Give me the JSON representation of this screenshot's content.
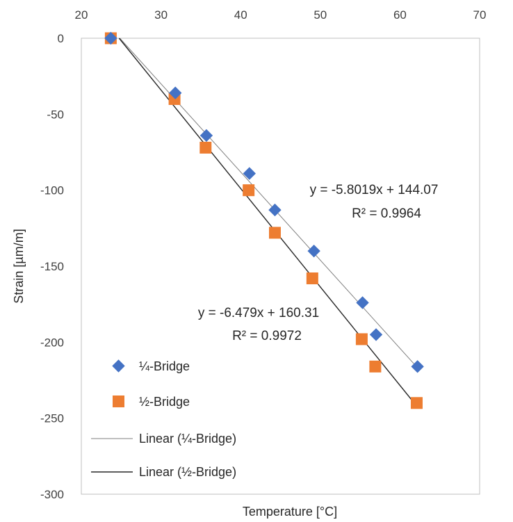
{
  "chart_data": {
    "type": "scatter",
    "title": "",
    "xlabel": "Temperature [°C]",
    "ylabel": "Strain [µm/m]",
    "xlim": [
      20,
      70
    ],
    "ylim": [
      -300,
      0
    ],
    "x_ticks": [
      20,
      30,
      40,
      50,
      60,
      70
    ],
    "y_ticks": [
      0,
      -50,
      -100,
      -150,
      -200,
      -250,
      -300
    ],
    "x_axis_position": "top",
    "grid": false,
    "legend_position": "bottom-left",
    "series": [
      {
        "name": "¼-Bridge",
        "marker": "diamond",
        "color": "#4472C4",
        "x": [
          23.7,
          31.8,
          35.7,
          41.1,
          44.3,
          49.2,
          55.3,
          57.0,
          62.2
        ],
        "y": [
          0,
          -36,
          -64,
          -89,
          -113,
          -140,
          -174,
          -195,
          -216
        ]
      },
      {
        "name": "½-Bridge",
        "marker": "square",
        "color": "#ED7D31",
        "x": [
          23.7,
          31.7,
          35.6,
          41.0,
          44.3,
          49.0,
          55.2,
          56.9,
          62.1
        ],
        "y": [
          0,
          -40,
          -72,
          -100,
          -128,
          -158,
          -198,
          -216,
          -240
        ]
      }
    ],
    "trendlines": [
      {
        "name": "Linear (¼-Bridge)",
        "slope": -5.8019,
        "intercept": 144.07,
        "x_range": [
          23.7,
          62.2
        ],
        "color": "#7f7f7f",
        "equation": "y = -5.8019x + 144.07",
        "r2": "R² = 0.9964"
      },
      {
        "name": "Linear (½-Bridge)",
        "slope": -6.479,
        "intercept": 160.31,
        "x_range": [
          23.7,
          62.1
        ],
        "color": "#262626",
        "equation": "y = -6.479x + 160.31",
        "r2": "R² = 0.9972"
      }
    ]
  }
}
